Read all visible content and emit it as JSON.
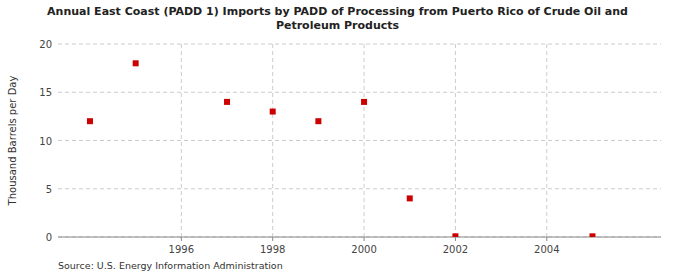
{
  "chart_data": {
    "type": "scatter",
    "title": "Annual East Coast (PADD 1) Imports by PADD of Processing from Puerto Rico of Crude Oil and\nPetroleum Products",
    "y_label": "Thousand Barrels per Day",
    "source": "Source: U.S. Energy Information Administration",
    "x": [
      1994,
      1995,
      1997,
      1998,
      1999,
      2000,
      2001,
      2002,
      2005
    ],
    "values": [
      12.0,
      18.0,
      14.0,
      13.0,
      12.0,
      14.0,
      4.0,
      0.07,
      0.07
    ],
    "color": "#cc0000",
    "marker": "square",
    "xlim": [
      1993.3,
      2006.5
    ],
    "ylim": [
      0,
      20
    ],
    "xticks": [
      1996,
      1998,
      2000,
      2002,
      2004
    ],
    "yticks": [
      0,
      5,
      10,
      15,
      20
    ],
    "grid": true
  }
}
